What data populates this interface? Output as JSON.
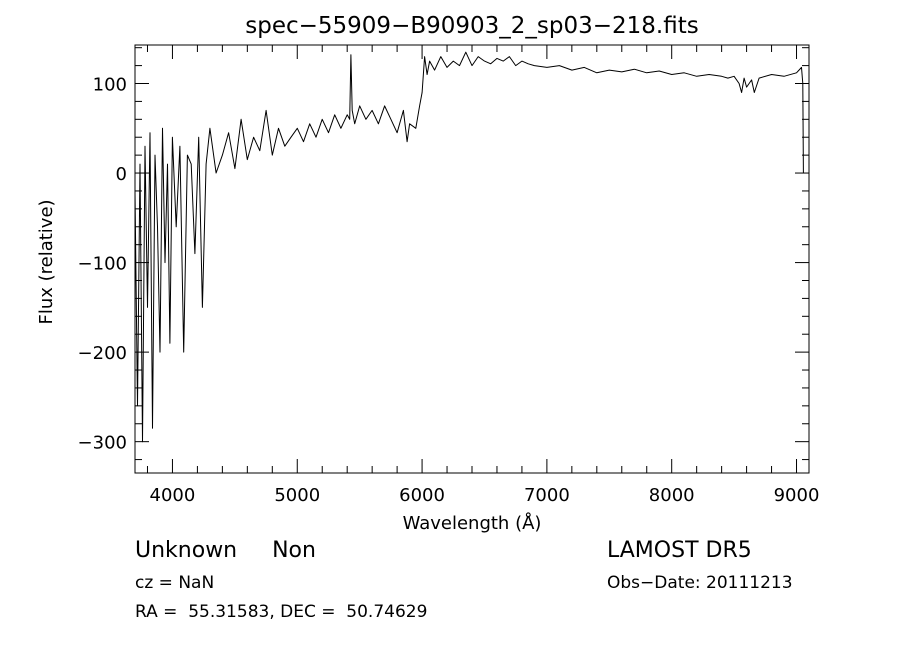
{
  "chart_data": {
    "type": "line",
    "title": "spec−55909−B90903_2_sp03−218.fits",
    "xlabel": "Wavelength (Å)",
    "ylabel": "Flux (relative)",
    "xlim": [
      3700,
      9100
    ],
    "ylim": [
      -335,
      143
    ],
    "x_ticks": [
      4000,
      5000,
      6000,
      7000,
      8000,
      9000
    ],
    "y_ticks": [
      -300,
      -200,
      -100,
      0,
      100
    ],
    "y_tick_labels": [
      "−300",
      "−200",
      "−100",
      "0",
      "100"
    ],
    "grid": false,
    "series": [
      {
        "x": [
          3700,
          3720,
          3740,
          3760,
          3780,
          3800,
          3820,
          3840,
          3860,
          3880,
          3900,
          3920,
          3940,
          3960,
          3980,
          4000,
          4030,
          4060,
          4090,
          4120,
          4150,
          4180,
          4210,
          4240,
          4270,
          4300,
          4350,
          4400,
          4450,
          4500,
          4550,
          4600,
          4650,
          4700,
          4750,
          4800,
          4850,
          4900,
          4950,
          5000,
          5050,
          5100,
          5150,
          5200,
          5250,
          5300,
          5350,
          5400,
          5420,
          5430,
          5440,
          5460,
          5500,
          5550,
          5600,
          5650,
          5700,
          5750,
          5800,
          5850,
          5880,
          5900,
          5950,
          5980,
          6000,
          6020,
          6040,
          6060,
          6100,
          6150,
          6200,
          6250,
          6300,
          6350,
          6400,
          6450,
          6500,
          6550,
          6600,
          6650,
          6700,
          6750,
          6800,
          6850,
          6900,
          7000,
          7100,
          7200,
          7300,
          7400,
          7500,
          7600,
          7700,
          7800,
          7900,
          8000,
          8100,
          8200,
          8300,
          8400,
          8450,
          8500,
          8540,
          8560,
          8580,
          8600,
          8640,
          8662,
          8700,
          8800,
          8900,
          9000,
          9020,
          9040,
          9050,
          9055
        ],
        "y": [
          -20,
          -260,
          10,
          -300,
          30,
          -150,
          45,
          -285,
          20,
          -60,
          -200,
          50,
          -100,
          10,
          -190,
          40,
          -60,
          30,
          -200,
          20,
          10,
          -90,
          40,
          -150,
          10,
          50,
          0,
          20,
          45,
          5,
          60,
          15,
          40,
          25,
          70,
          20,
          50,
          30,
          40,
          50,
          35,
          55,
          40,
          60,
          45,
          65,
          50,
          65,
          60,
          132,
          70,
          55,
          75,
          60,
          70,
          55,
          75,
          60,
          45,
          70,
          35,
          55,
          50,
          75,
          90,
          130,
          110,
          125,
          115,
          130,
          118,
          125,
          120,
          135,
          120,
          130,
          125,
          122,
          128,
          125,
          130,
          120,
          125,
          122,
          120,
          118,
          120,
          115,
          118,
          112,
          115,
          113,
          116,
          112,
          114,
          110,
          112,
          108,
          110,
          108,
          106,
          108,
          100,
          90,
          106,
          96,
          104,
          90,
          106,
          110,
          108,
          112,
          115,
          118,
          100,
          0
        ]
      }
    ]
  },
  "info": {
    "object": "Unknown     Non",
    "cz": "cz = NaN",
    "radec": "RA =  55.31583, DEC =  50.74629",
    "survey": "LAMOST DR5",
    "obsdate": "Obs−Date: 20111213"
  }
}
